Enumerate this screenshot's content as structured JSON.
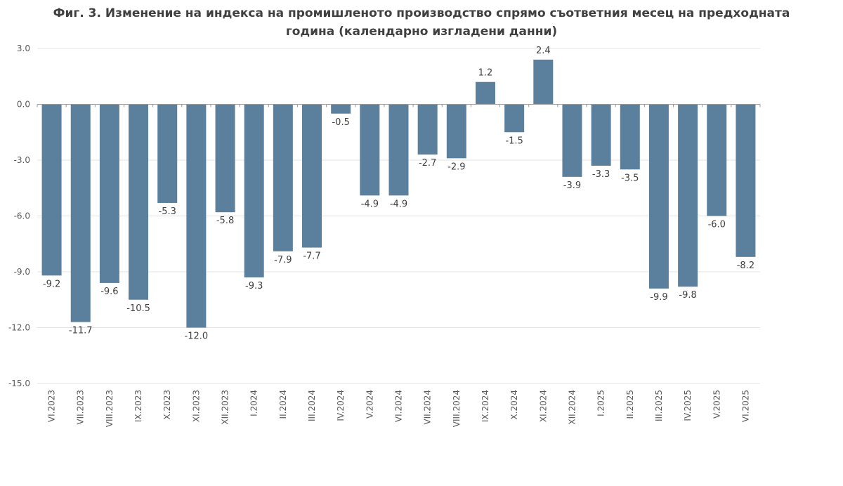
{
  "title_line1": "Фиг. 3. Изменение на индекса на промишленото производство спрямо съответния месец на предходната",
  "title_line2": "година (календарно изгладени данни)",
  "chart_data": {
    "type": "bar",
    "title": "Фиг. 3. Изменение на индекса на промишленото производство спрямо съответния месец на предходната година (календарно изгладени данни)",
    "categories": [
      "VI.2023",
      "VII.2023",
      "VIII.2023",
      "IX.2023",
      "X.2023",
      "XI.2023",
      "XII.2023",
      "I.2024",
      "II.2024",
      "III.2024",
      "IV.2024",
      "V.2024",
      "VI.2024",
      "VII.2024",
      "VIII.2024",
      "IX.2024",
      "X.2024",
      "XI.2024",
      "XII.2024",
      "I.2025",
      "II.2025",
      "III.2025",
      "IV.2025",
      "V.2025",
      "VI.2025"
    ],
    "values": [
      -9.2,
      -11.7,
      -9.6,
      -10.5,
      -5.3,
      -12.0,
      -5.8,
      -9.3,
      -7.9,
      -7.7,
      -0.5,
      -4.9,
      -4.9,
      -2.7,
      -2.9,
      1.2,
      -1.5,
      2.4,
      -3.9,
      -3.3,
      -3.5,
      -9.9,
      -9.8,
      -6.0,
      -8.2
    ],
    "value_labels": [
      "-9.2",
      "-11.7",
      "-9.6",
      "-10.5",
      "-5.3",
      "-12.0",
      "-5.8",
      "-9.3",
      "-7.9",
      "-7.7",
      "-0.5",
      "-4.9",
      "-4.9",
      "-2.7",
      "-2.9",
      "1.2",
      "-1.5",
      "2.4",
      "-3.9",
      "-3.3",
      "-3.5",
      "-9.9",
      "-9.8",
      "-6.0",
      "-8.2"
    ],
    "ylim": [
      -15.0,
      3.0
    ],
    "yticks": [
      3.0,
      0.0,
      -3.0,
      -6.0,
      -9.0,
      -12.0,
      -15.0
    ],
    "ytick_labels": [
      "3.0",
      "0.0",
      "-3.0",
      "-6.0",
      "-9.0",
      "-12.0",
      "-15.0"
    ],
    "grid": true,
    "legend": "none",
    "bar_color": "#5a809e",
    "grid_color": "#e3e3e3",
    "axis_color": "#9a9a9a"
  }
}
